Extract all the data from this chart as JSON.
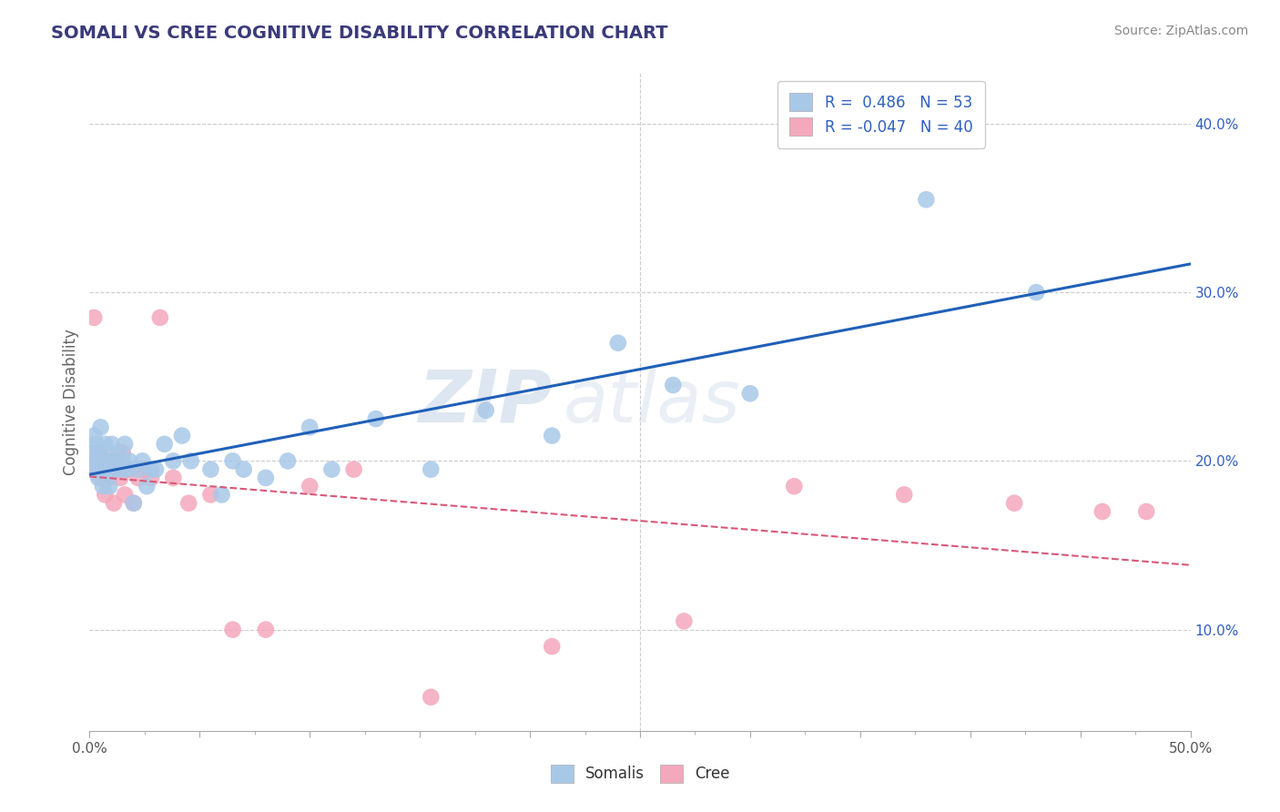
{
  "title": "SOMALI VS CREE COGNITIVE DISABILITY CORRELATION CHART",
  "source": "Source: ZipAtlas.com",
  "ylabel": "Cognitive Disability",
  "xlim": [
    0.0,
    0.5
  ],
  "ylim": [
    0.04,
    0.43
  ],
  "yticks": [
    0.1,
    0.2,
    0.3,
    0.4
  ],
  "ytick_labels": [
    "10.0%",
    "20.0%",
    "30.0%",
    "40.0%"
  ],
  "somali_R": 0.486,
  "somali_N": 53,
  "cree_R": -0.047,
  "cree_N": 40,
  "somali_color": "#a8c8e8",
  "cree_color": "#f4a8bc",
  "somali_line_color": "#2060b8",
  "cree_line_color": "#d85878",
  "background_color": "#ffffff",
  "grid_color": "#cccccc",
  "watermark_zip": "ZIP",
  "watermark_atlas": "atlas",
  "somali_x": [
    0.001,
    0.002,
    0.002,
    0.003,
    0.003,
    0.004,
    0.004,
    0.005,
    0.005,
    0.006,
    0.006,
    0.007,
    0.007,
    0.008,
    0.008,
    0.009,
    0.01,
    0.01,
    0.011,
    0.012,
    0.013,
    0.014,
    0.015,
    0.016,
    0.017,
    0.018,
    0.02,
    0.022,
    0.024,
    0.026,
    0.028,
    0.03,
    0.034,
    0.038,
    0.042,
    0.046,
    0.055,
    0.06,
    0.065,
    0.07,
    0.08,
    0.09,
    0.1,
    0.11,
    0.13,
    0.155,
    0.18,
    0.21,
    0.24,
    0.265,
    0.3,
    0.38,
    0.43
  ],
  "somali_y": [
    0.205,
    0.215,
    0.195,
    0.2,
    0.21,
    0.19,
    0.205,
    0.22,
    0.195,
    0.2,
    0.185,
    0.195,
    0.21,
    0.2,
    0.195,
    0.185,
    0.2,
    0.21,
    0.195,
    0.2,
    0.205,
    0.195,
    0.2,
    0.21,
    0.195,
    0.2,
    0.175,
    0.195,
    0.2,
    0.185,
    0.195,
    0.195,
    0.21,
    0.2,
    0.215,
    0.2,
    0.195,
    0.18,
    0.2,
    0.195,
    0.19,
    0.2,
    0.22,
    0.195,
    0.225,
    0.195,
    0.23,
    0.215,
    0.27,
    0.245,
    0.24,
    0.355,
    0.3
  ],
  "cree_x": [
    0.001,
    0.002,
    0.003,
    0.003,
    0.004,
    0.005,
    0.005,
    0.006,
    0.007,
    0.007,
    0.008,
    0.009,
    0.01,
    0.011,
    0.012,
    0.013,
    0.014,
    0.015,
    0.016,
    0.018,
    0.02,
    0.022,
    0.025,
    0.028,
    0.032,
    0.038,
    0.045,
    0.055,
    0.065,
    0.08,
    0.1,
    0.12,
    0.155,
    0.21,
    0.27,
    0.32,
    0.37,
    0.42,
    0.46,
    0.48
  ],
  "cree_y": [
    0.205,
    0.285,
    0.2,
    0.195,
    0.195,
    0.19,
    0.205,
    0.195,
    0.18,
    0.195,
    0.2,
    0.19,
    0.195,
    0.175,
    0.195,
    0.2,
    0.19,
    0.205,
    0.18,
    0.195,
    0.175,
    0.19,
    0.195,
    0.19,
    0.285,
    0.19,
    0.175,
    0.18,
    0.1,
    0.1,
    0.185,
    0.195,
    0.06,
    0.09,
    0.105,
    0.185,
    0.18,
    0.175,
    0.17,
    0.17
  ]
}
